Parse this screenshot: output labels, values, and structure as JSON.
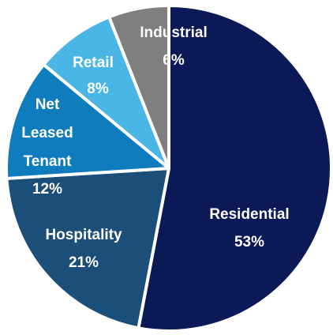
{
  "chart_data": {
    "type": "pie",
    "categories": [
      "Residential",
      "Hospitality",
      "Net Leased Tenant",
      "Retail",
      "Industrial"
    ],
    "values": [
      53,
      21,
      12,
      8,
      6
    ],
    "value_labels": [
      "53%",
      "21%",
      "12%",
      "8%",
      "6%"
    ],
    "colors": [
      "#0b1957",
      "#1b4e78",
      "#0f7cbd",
      "#4ab6e6",
      "#7f7f7f"
    ]
  }
}
